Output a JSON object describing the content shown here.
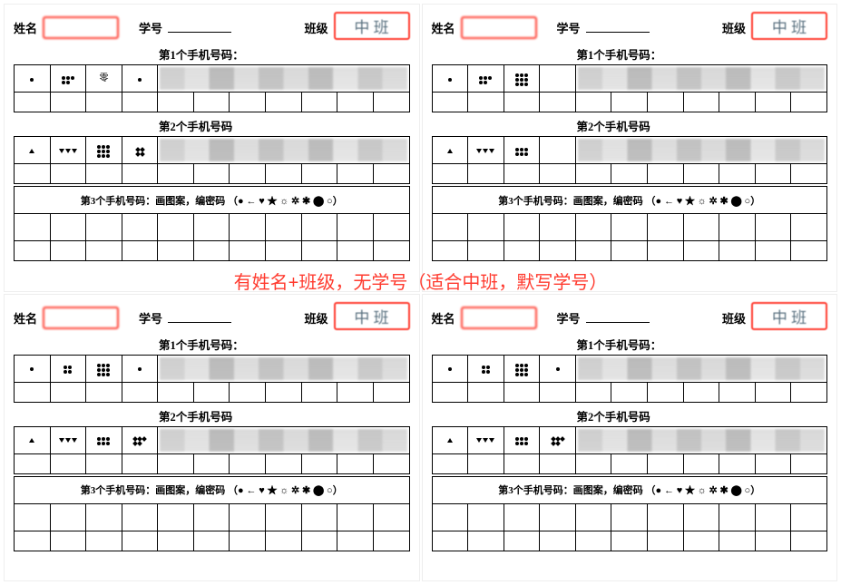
{
  "annotation_text": "有姓名+班级，无学号（适合中班，默写学号）",
  "annotation_color": "#ff3b2f",
  "highlight_border_color": "#ff3b2f",
  "header": {
    "name_label": "姓名",
    "id_label": "学号",
    "class_label": "班级",
    "class_value": "中  班"
  },
  "sections": {
    "phone1": "第1个手机号码：",
    "phone2": "第2个手机号码",
    "phone3_prefix": "第3个手机号码：画图案，编密码",
    "phone3_symbols": "（● ← ♥ ★ ☼ ✲ ✱ ⬤ ○）"
  },
  "row1_symbols": {
    "c1": "dot1",
    "c2": "dot5_23",
    "c3": "text_ling",
    "c4": "dot1"
  },
  "row1b_symbols": {
    "c1": "dot1",
    "c2": "dot4_22",
    "c3": "dot9_33",
    "c4": "dot1"
  },
  "row2_symbols": {
    "c1": "tri_up1",
    "c2": "tri_down3",
    "c3": "dot9_33",
    "c4": "dia4"
  },
  "row2b_symbols": {
    "c1": "tri_up1",
    "c2": "tri_down3",
    "c3": "dot6_32",
    "c4": "dia5"
  },
  "row1_right_symbols": {
    "c1": "dot1",
    "c2": "dot5_23",
    "c3": "dot9_33",
    "c4": ""
  },
  "row2_right_symbols": {
    "c1": "tri_up1",
    "c2": "tri_down3",
    "c3": "dot6_32",
    "c4": ""
  },
  "colors": {
    "grid_border": "#000000",
    "background": "#ffffff",
    "redacted_gray": "#b5b5b5"
  },
  "grid": {
    "cols_total": 11,
    "symbol_cols": 4,
    "redacted_cols": 7
  },
  "sheets": [
    {
      "name_redacted": true,
      "class_shown": true,
      "row1": "row1_symbols",
      "row2": "row2_symbols"
    },
    {
      "name_redacted": true,
      "class_shown": true,
      "row1": "row1_right_symbols",
      "row2": "row2_right_symbols"
    },
    {
      "name_redacted": true,
      "class_shown": true,
      "row1": "row1b_symbols",
      "row2": "row2b_symbols"
    },
    {
      "name_redacted": true,
      "class_shown": true,
      "row1": "row1b_symbols",
      "row2": "row2b_symbols"
    }
  ]
}
